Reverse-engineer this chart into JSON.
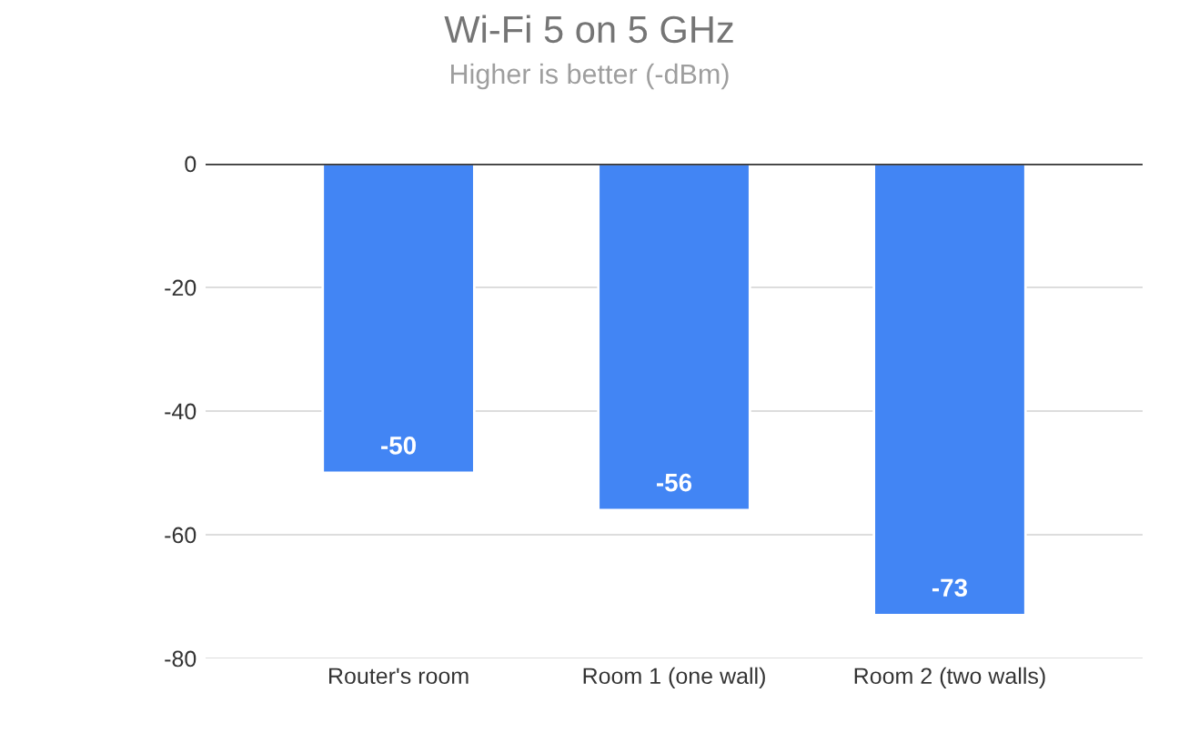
{
  "chart_data": {
    "type": "bar",
    "title": "Wi-Fi 5 on 5 GHz",
    "subtitle": "Higher is better (-dBm)",
    "categories": [
      "Router's room",
      "Room 1 (one wall)",
      "Room 2 (two walls)"
    ],
    "values": [
      -50,
      -56,
      -73
    ],
    "color": "#4285f4",
    "ylim": [
      -80,
      0
    ],
    "yticks": [
      0,
      -20,
      -40,
      -60,
      -80
    ],
    "grid": "y",
    "data_labels": true
  }
}
